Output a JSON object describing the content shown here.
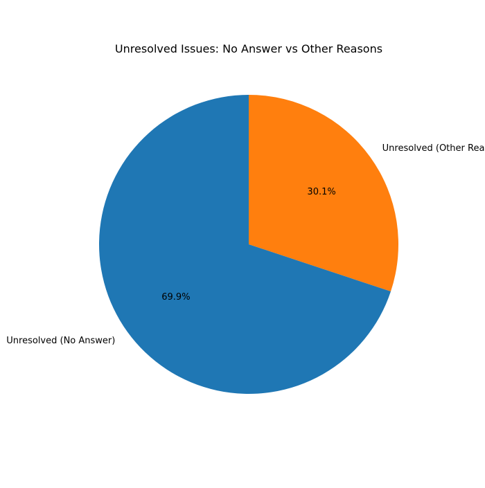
{
  "chart_data": {
    "type": "pie",
    "title": "Unresolved Issues: No Answer vs Other Reasons",
    "labels": [
      "Unresolved (Other Reasons)",
      "Unresolved (No Answer)"
    ],
    "values": [
      30.1,
      69.9
    ],
    "percent_labels": [
      "30.1%",
      "69.9%"
    ],
    "colors": [
      "#ff7f0e",
      "#1f77b4"
    ],
    "start_angle_deg": 90,
    "direction": "clockwise"
  }
}
